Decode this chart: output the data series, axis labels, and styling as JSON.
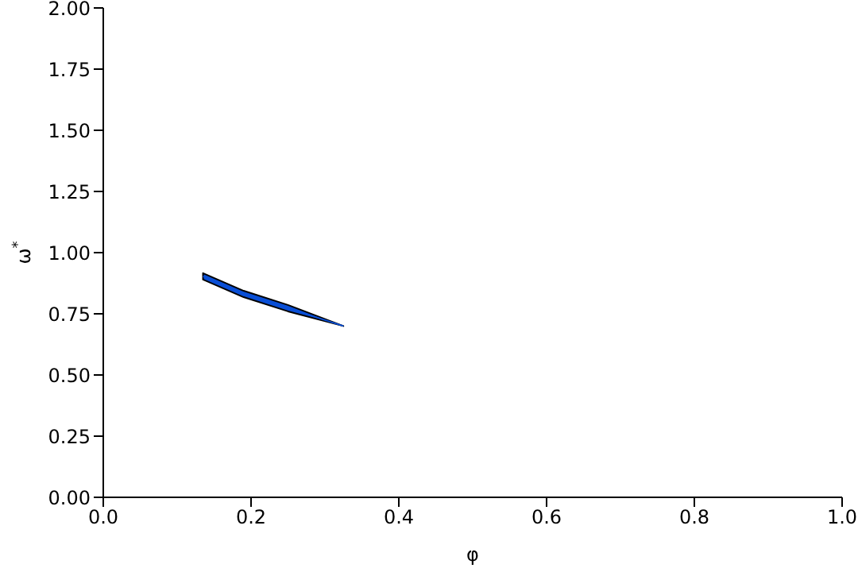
{
  "chart_data": {
    "type": "line",
    "xlabel": "φ",
    "ylabel": "ω$^{*}$",
    "xlim": [
      0,
      1
    ],
    "ylim": [
      0,
      2
    ],
    "xticks": [
      {
        "value": 0,
        "label": "0.0"
      },
      {
        "value": 0.2,
        "label": "0.2"
      },
      {
        "value": 0.4,
        "label": "0.4"
      },
      {
        "value": 0.6,
        "label": "0.6"
      },
      {
        "value": 0.8,
        "label": "0.8"
      },
      {
        "value": 1,
        "label": "1.0"
      }
    ],
    "yticks": [
      {
        "value": 0,
        "label": "0.00"
      },
      {
        "value": 0.25,
        "label": "0.25"
      },
      {
        "value": 0.5,
        "label": "0.50"
      },
      {
        "value": 0.75,
        "label": "0.75"
      },
      {
        "value": 1,
        "label": "1.00"
      },
      {
        "value": 1.25,
        "label": "1.25"
      },
      {
        "value": 1.5,
        "label": "1.50"
      },
      {
        "value": 1.75,
        "label": "1.75"
      },
      {
        "value": 2,
        "label": "2.00"
      }
    ],
    "grid": false,
    "legend": false,
    "series": [
      {
        "color": "#0a4fd6",
        "x": [
          0.135,
          0.19,
          0.25,
          0.325
        ],
        "values": [
          0.903,
          0.831,
          0.773,
          0.7
        ],
        "lower": [
          0.89,
          0.818,
          0.76,
          0.7
        ],
        "upper": [
          0.916,
          0.844,
          0.786,
          0.7
        ]
      }
    ]
  }
}
